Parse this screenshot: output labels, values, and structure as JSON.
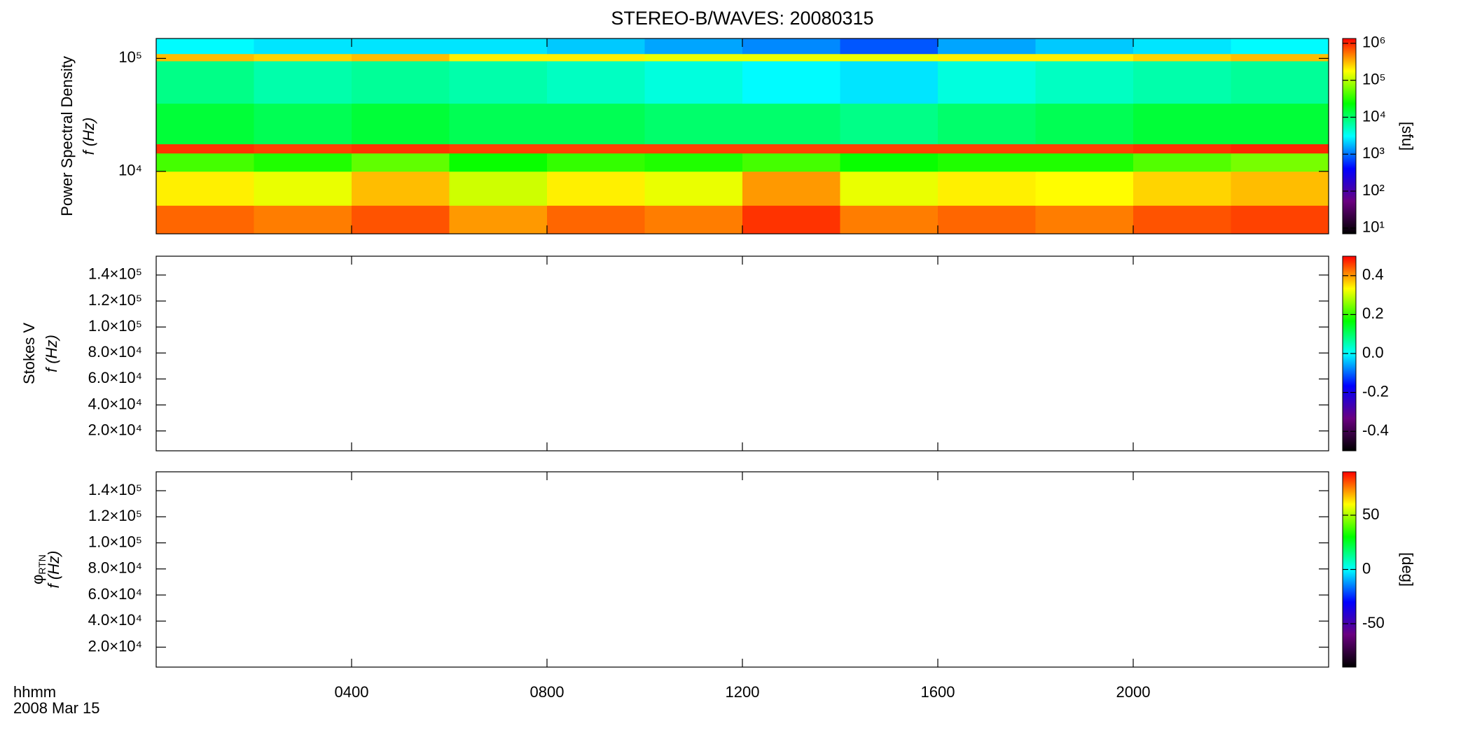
{
  "chart_data": [
    {
      "type": "heatmap",
      "title": "STEREO-B/WAVES: 20080315",
      "ylabel": "Power Spectral Density",
      "ylabel2": "f (Hz)",
      "ylog": true,
      "ylim": [
        2800,
        150000
      ],
      "yticks": [
        {
          "value": 10000,
          "label": "10⁴"
        },
        {
          "value": 100000,
          "label": "10⁵"
        }
      ],
      "xlim": [
        0,
        24
      ],
      "xticks": [
        4,
        8,
        12,
        16,
        20
      ],
      "time_edges": [
        0,
        2,
        4,
        6,
        8,
        10,
        12,
        14,
        16,
        18,
        20,
        22,
        24
      ],
      "freq_edges": [
        2800,
        5000,
        10000,
        14500,
        17500,
        40000,
        95000,
        110000,
        150000
      ],
      "values": [
        [
          600000,
          500000,
          700000,
          400000,
          600000,
          500000,
          900000,
          500000,
          600000,
          500000,
          700000,
          800000
        ],
        [
          200000,
          150000,
          300000,
          120000,
          200000,
          150000,
          400000,
          150000,
          200000,
          180000,
          250000,
          300000
        ],
        [
          40000,
          30000,
          50000,
          25000,
          35000,
          30000,
          40000,
          25000,
          30000,
          30000,
          45000,
          60000
        ],
        [
          900000,
          800000,
          900000,
          800000,
          800000,
          800000,
          800000,
          800000,
          800000,
          800000,
          900000,
          1000000
        ],
        [
          15000,
          12000,
          15000,
          12000,
          12000,
          10000,
          10000,
          8000,
          10000,
          12000,
          15000,
          15000
        ],
        [
          8000,
          6000,
          7000,
          6000,
          5000,
          4000,
          3000,
          2500,
          4000,
          5000,
          6000,
          7000
        ],
        [
          300000,
          250000,
          300000,
          200000,
          200000,
          150000,
          150000,
          150000,
          200000,
          200000,
          250000,
          300000
        ],
        [
          3000,
          2500,
          2500,
          2500,
          2000,
          1500,
          1200,
          800,
          1500,
          2000,
          2500,
          3000
        ]
      ],
      "colormap": [
        "#000000",
        "#6a0080",
        "#0000ff",
        "#00ffff",
        "#00ff00",
        "#ffff00",
        "#ff0000"
      ],
      "colorbar": {
        "log": true,
        "lim": [
          7,
          1350000
        ],
        "label": "[sfu]",
        "ticks": [
          {
            "value": 10,
            "label": "10¹"
          },
          {
            "value": 100,
            "label": "10²"
          },
          {
            "value": 1000,
            "label": "10³"
          },
          {
            "value": 10000,
            "label": "10⁴"
          },
          {
            "value": 100000,
            "label": "10⁵"
          },
          {
            "value": 1000000,
            "label": "10⁶"
          }
        ]
      }
    },
    {
      "type": "heatmap",
      "ylabel": "Stokes V",
      "ylabel2": "f (Hz)",
      "ylog": false,
      "ylim": [
        4700,
        154500
      ],
      "yticks": [
        {
          "value": 20000,
          "label": "2.0×10⁴"
        },
        {
          "value": 40000,
          "label": "4.0×10⁴"
        },
        {
          "value": 60000,
          "label": "6.0×10⁴"
        },
        {
          "value": 80000,
          "label": "8.0×10⁴"
        },
        {
          "value": 100000,
          "label": "1.0×10⁵"
        },
        {
          "value": 120000,
          "label": "1.2×10⁵"
        },
        {
          "value": 140000,
          "label": "1.4×10⁵"
        }
      ],
      "xlim": [
        0,
        24
      ],
      "xticks": [
        4,
        8,
        12,
        16,
        20
      ],
      "colormap": [
        "#000000",
        "#6a0080",
        "#0000ff",
        "#00ffff",
        "#00ff00",
        "#ffff00",
        "#ff0000"
      ],
      "colorbar": {
        "log": false,
        "lim": [
          -0.5,
          0.5
        ],
        "ticks": [
          -0.4,
          -0.2,
          {
            "value": 0,
            "label": "0.0"
          },
          0.2,
          0.4
        ]
      }
    },
    {
      "type": "heatmap",
      "ylabel": "φ",
      "ylabel_sub": "RTN",
      "ylabel2": "f (Hz)",
      "ylog": false,
      "ylim": [
        4700,
        154500
      ],
      "yticks": [
        {
          "value": 20000,
          "label": "2.0×10⁴"
        },
        {
          "value": 40000,
          "label": "4.0×10⁴"
        },
        {
          "value": 60000,
          "label": "6.0×10⁴"
        },
        {
          "value": 80000,
          "label": "8.0×10⁴"
        },
        {
          "value": 100000,
          "label": "1.0×10⁵"
        },
        {
          "value": 120000,
          "label": "1.2×10⁵"
        },
        {
          "value": 140000,
          "label": "1.4×10⁵"
        }
      ],
      "xlim": [
        0,
        24
      ],
      "xticks": [
        {
          "value": 4,
          "label": "0400"
        },
        {
          "value": 8,
          "label": "0800"
        },
        {
          "value": 12,
          "label": "1200"
        },
        {
          "value": 16,
          "label": "1600"
        },
        {
          "value": 20,
          "label": "2000"
        }
      ],
      "xlabel": "hhmm",
      "date_label": "2008 Mar 15",
      "colormap": [
        "#000000",
        "#6a0080",
        "#0000ff",
        "#00ffff",
        "#00ff00",
        "#ffff00",
        "#ff0000"
      ],
      "colorbar": {
        "log": false,
        "lim": [
          -90,
          90
        ],
        "label": "[deg]",
        "ticks": [
          -50,
          0,
          50
        ]
      }
    }
  ]
}
